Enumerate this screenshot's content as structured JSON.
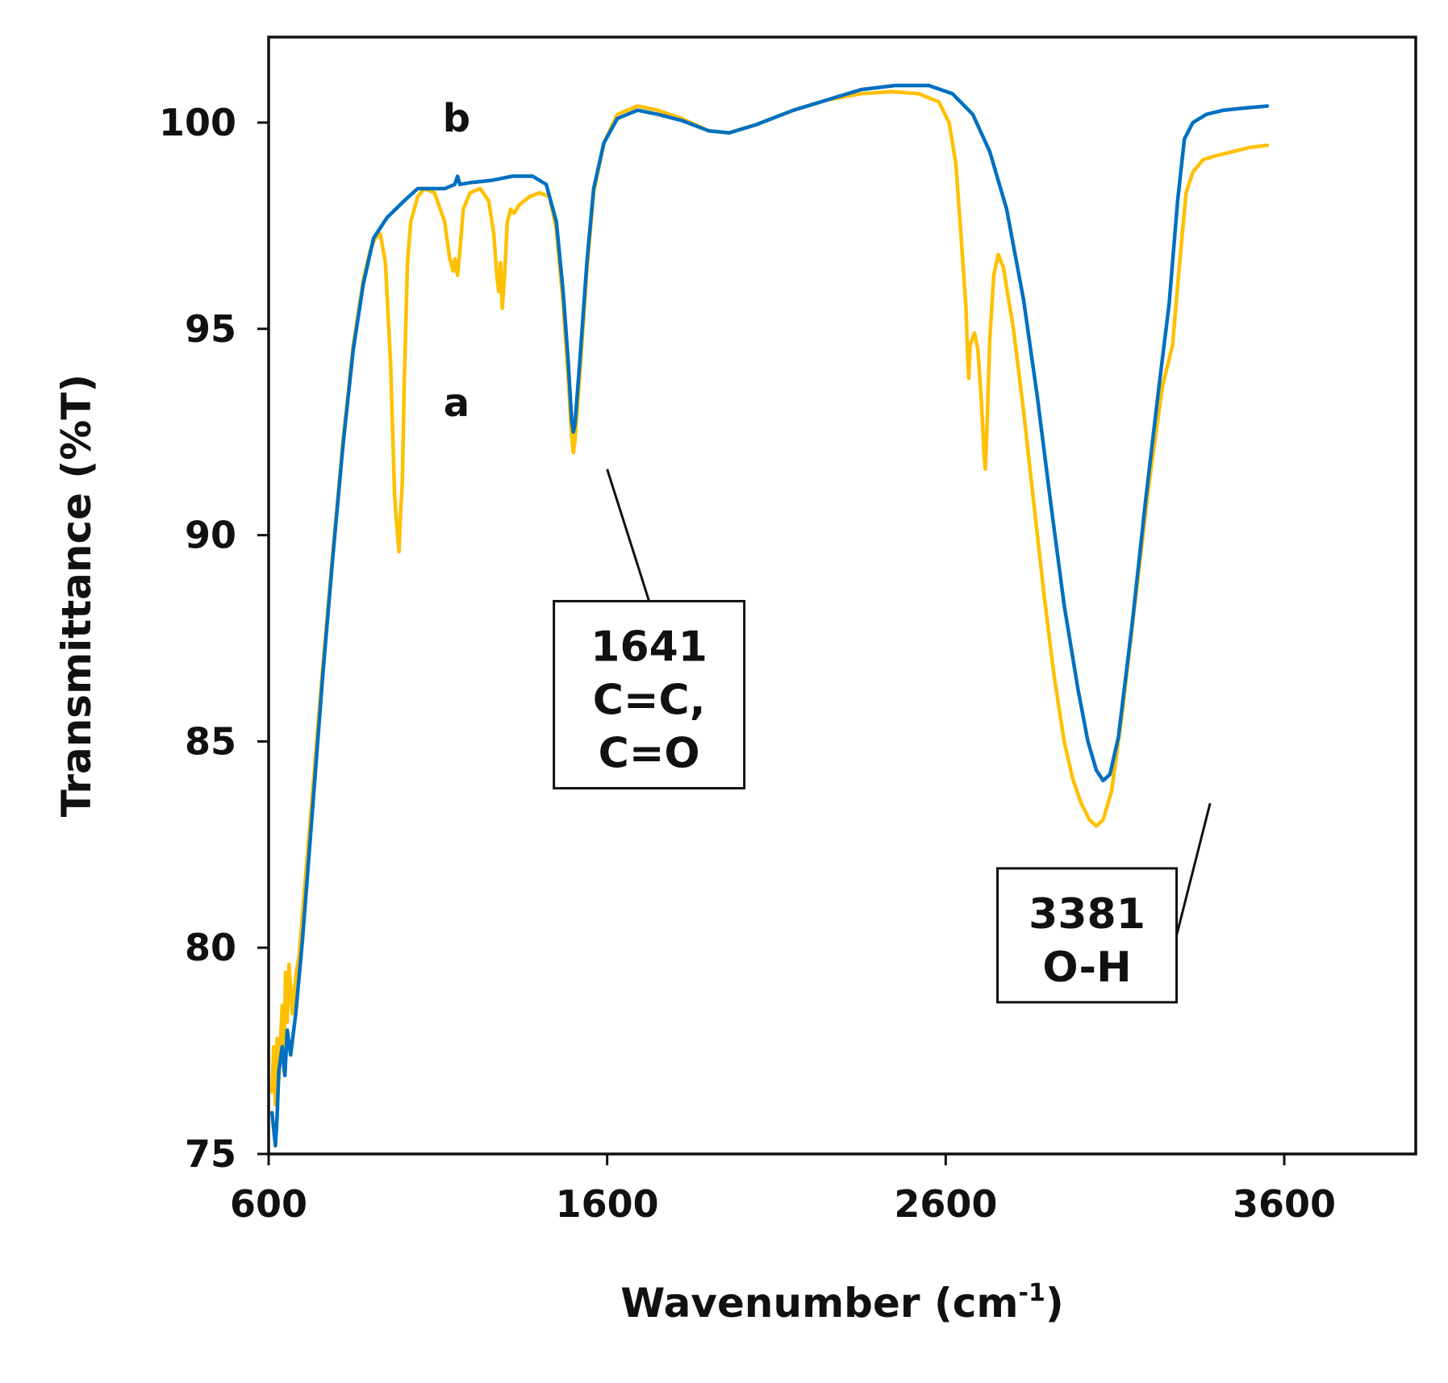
{
  "chart_data": {
    "type": "line",
    "title": "",
    "xlabel": "Wavenumber (cm",
    "xlabel_sup": "-1",
    "xlabel_end": ")",
    "ylabel": "Transmittance  (%T)",
    "xlim": [
      600,
      4000
    ],
    "ylim": [
      75,
      102
    ],
    "xticks": [
      600,
      1600,
      2600,
      3600
    ],
    "yticks": [
      75,
      80,
      85,
      90,
      95,
      100
    ],
    "grid": false,
    "series": [
      {
        "name": "a",
        "color": "#FFC000",
        "points": [
          [
            610,
            76.5
          ],
          [
            615,
            77.6
          ],
          [
            620,
            76.2
          ],
          [
            625,
            77.8
          ],
          [
            630,
            76.8
          ],
          [
            640,
            78.6
          ],
          [
            645,
            77.0
          ],
          [
            650,
            79.4
          ],
          [
            655,
            78.2
          ],
          [
            660,
            79.6
          ],
          [
            670,
            78.4
          ],
          [
            680,
            79.3
          ],
          [
            690,
            79.8
          ],
          [
            700,
            80.8
          ],
          [
            730,
            83.8
          ],
          [
            760,
            86.8
          ],
          [
            790,
            89.6
          ],
          [
            820,
            92.3
          ],
          [
            850,
            94.6
          ],
          [
            880,
            96.2
          ],
          [
            900,
            96.9
          ],
          [
            915,
            97.2
          ],
          [
            930,
            97.3
          ],
          [
            945,
            96.6
          ],
          [
            960,
            94.2
          ],
          [
            972,
            91.0
          ],
          [
            978,
            90.3
          ],
          [
            985,
            89.6
          ],
          [
            990,
            90.6
          ],
          [
            995,
            91.3
          ],
          [
            1000,
            93.5
          ],
          [
            1010,
            96.6
          ],
          [
            1020,
            97.6
          ],
          [
            1040,
            98.2
          ],
          [
            1060,
            98.4
          ],
          [
            1090,
            98.3
          ],
          [
            1120,
            97.6
          ],
          [
            1135,
            96.7
          ],
          [
            1145,
            96.4
          ],
          [
            1150,
            96.7
          ],
          [
            1158,
            96.3
          ],
          [
            1165,
            96.9
          ],
          [
            1175,
            97.9
          ],
          [
            1195,
            98.3
          ],
          [
            1225,
            98.4
          ],
          [
            1250,
            98.1
          ],
          [
            1265,
            97.3
          ],
          [
            1275,
            96.2
          ],
          [
            1280,
            95.9
          ],
          [
            1285,
            96.6
          ],
          [
            1290,
            95.5
          ],
          [
            1297,
            96.3
          ],
          [
            1305,
            97.6
          ],
          [
            1315,
            97.9
          ],
          [
            1325,
            97.8
          ],
          [
            1340,
            98.0
          ],
          [
            1370,
            98.2
          ],
          [
            1400,
            98.3
          ],
          [
            1430,
            98.2
          ],
          [
            1450,
            97.4
          ],
          [
            1470,
            95.6
          ],
          [
            1485,
            93.8
          ],
          [
            1495,
            92.4
          ],
          [
            1500,
            92.0
          ],
          [
            1505,
            92.3
          ],
          [
            1520,
            94.0
          ],
          [
            1540,
            96.4
          ],
          [
            1560,
            98.3
          ],
          [
            1590,
            99.5
          ],
          [
            1630,
            100.2
          ],
          [
            1690,
            100.4
          ],
          [
            1750,
            100.3
          ],
          [
            1820,
            100.1
          ],
          [
            1900,
            99.8
          ],
          [
            1960,
            99.75
          ],
          [
            2040,
            99.95
          ],
          [
            2150,
            100.3
          ],
          [
            2250,
            100.55
          ],
          [
            2350,
            100.7
          ],
          [
            2440,
            100.75
          ],
          [
            2520,
            100.7
          ],
          [
            2580,
            100.5
          ],
          [
            2610,
            100.0
          ],
          [
            2630,
            99.0
          ],
          [
            2645,
            97.3
          ],
          [
            2660,
            95.5
          ],
          [
            2665,
            94.3
          ],
          [
            2668,
            93.8
          ],
          [
            2672,
            94.6
          ],
          [
            2685,
            94.9
          ],
          [
            2695,
            94.5
          ],
          [
            2705,
            93.3
          ],
          [
            2713,
            92.0
          ],
          [
            2717,
            91.6
          ],
          [
            2722,
            92.6
          ],
          [
            2730,
            94.7
          ],
          [
            2742,
            96.3
          ],
          [
            2755,
            96.8
          ],
          [
            2770,
            96.5
          ],
          [
            2800,
            95.0
          ],
          [
            2830,
            93.0
          ],
          [
            2860,
            90.8
          ],
          [
            2890,
            88.6
          ],
          [
            2920,
            86.6
          ],
          [
            2950,
            85.0
          ],
          [
            2975,
            84.1
          ],
          [
            3000,
            83.5
          ],
          [
            3025,
            83.1
          ],
          [
            3045,
            82.95
          ],
          [
            3065,
            83.1
          ],
          [
            3090,
            83.8
          ],
          [
            3120,
            85.6
          ],
          [
            3160,
            88.4
          ],
          [
            3200,
            91.2
          ],
          [
            3240,
            93.6
          ],
          [
            3270,
            94.6
          ],
          [
            3290,
            96.5
          ],
          [
            3310,
            98.3
          ],
          [
            3330,
            98.8
          ],
          [
            3360,
            99.1
          ],
          [
            3400,
            99.2
          ],
          [
            3450,
            99.3
          ],
          [
            3500,
            99.4
          ],
          [
            3550,
            99.45
          ]
        ]
      },
      {
        "name": "b",
        "color": "#0070C0",
        "points": [
          [
            610,
            76.0
          ],
          [
            615,
            75.6
          ],
          [
            620,
            75.2
          ],
          [
            625,
            75.9
          ],
          [
            630,
            77.0
          ],
          [
            640,
            77.6
          ],
          [
            648,
            76.9
          ],
          [
            655,
            78.0
          ],
          [
            665,
            77.4
          ],
          [
            680,
            78.4
          ],
          [
            700,
            80.2
          ],
          [
            730,
            83.4
          ],
          [
            760,
            86.6
          ],
          [
            790,
            89.5
          ],
          [
            820,
            92.2
          ],
          [
            850,
            94.5
          ],
          [
            880,
            96.1
          ],
          [
            910,
            97.2
          ],
          [
            950,
            97.7
          ],
          [
            1000,
            98.1
          ],
          [
            1040,
            98.4
          ],
          [
            1080,
            98.4
          ],
          [
            1120,
            98.4
          ],
          [
            1150,
            98.5
          ],
          [
            1158,
            98.7
          ],
          [
            1165,
            98.5
          ],
          [
            1200,
            98.55
          ],
          [
            1260,
            98.6
          ],
          [
            1320,
            98.7
          ],
          [
            1380,
            98.7
          ],
          [
            1420,
            98.5
          ],
          [
            1450,
            97.6
          ],
          [
            1470,
            95.9
          ],
          [
            1485,
            94.2
          ],
          [
            1495,
            92.8
          ],
          [
            1500,
            92.5
          ],
          [
            1505,
            92.7
          ],
          [
            1520,
            94.3
          ],
          [
            1540,
            96.6
          ],
          [
            1560,
            98.4
          ],
          [
            1590,
            99.5
          ],
          [
            1630,
            100.1
          ],
          [
            1690,
            100.3
          ],
          [
            1750,
            100.2
          ],
          [
            1820,
            100.05
          ],
          [
            1900,
            99.8
          ],
          [
            1960,
            99.75
          ],
          [
            2040,
            99.95
          ],
          [
            2150,
            100.3
          ],
          [
            2250,
            100.55
          ],
          [
            2350,
            100.8
          ],
          [
            2450,
            100.9
          ],
          [
            2550,
            100.9
          ],
          [
            2620,
            100.7
          ],
          [
            2680,
            100.2
          ],
          [
            2730,
            99.3
          ],
          [
            2780,
            97.9
          ],
          [
            2830,
            95.7
          ],
          [
            2870,
            93.4
          ],
          [
            2910,
            90.8
          ],
          [
            2950,
            88.3
          ],
          [
            2990,
            86.3
          ],
          [
            3020,
            85.0
          ],
          [
            3045,
            84.3
          ],
          [
            3065,
            84.05
          ],
          [
            3085,
            84.2
          ],
          [
            3110,
            85.1
          ],
          [
            3150,
            87.8
          ],
          [
            3190,
            90.8
          ],
          [
            3230,
            93.6
          ],
          [
            3260,
            95.6
          ],
          [
            3285,
            98.1
          ],
          [
            3305,
            99.6
          ],
          [
            3330,
            100.0
          ],
          [
            3370,
            100.2
          ],
          [
            3420,
            100.3
          ],
          [
            3480,
            100.35
          ],
          [
            3550,
            100.4
          ]
        ]
      }
    ],
    "series_labels": [
      {
        "text": "a",
        "series": "a",
        "at": [
          1155,
          93.2
        ]
      },
      {
        "text": "b",
        "series": "b",
        "at": [
          1155,
          100.1
        ]
      }
    ],
    "annotations": [
      {
        "lines": [
          "1641",
          " C=C,",
          "C=O"
        ],
        "points_to": [
          1600,
          91.6
        ],
        "box_anchor": [
          1700,
          88.4
        ]
      },
      {
        "lines": [
          "3381",
          "O-H"
        ],
        "points_to": [
          3381,
          83.5
        ],
        "box_anchor": [
          3282,
          80.3
        ]
      }
    ]
  }
}
